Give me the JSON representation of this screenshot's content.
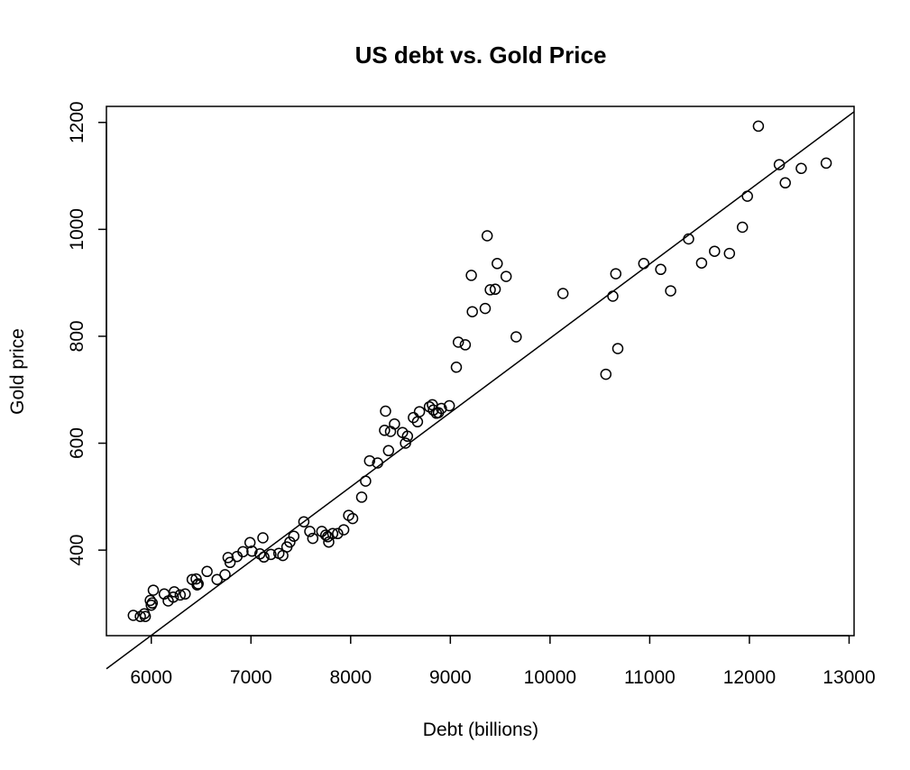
{
  "chart_data": {
    "type": "scatter",
    "title": "US debt vs. Gold Price",
    "xlabel": "Debt (billions)",
    "ylabel": "Gold price",
    "xlim": [
      5550,
      13050
    ],
    "ylim": [
      240,
      1230
    ],
    "x_ticks": [
      6000,
      7000,
      8000,
      9000,
      10000,
      11000,
      12000,
      13000
    ],
    "y_ticks": [
      400,
      600,
      800,
      1000,
      1200
    ],
    "x_tick_labels": [
      "6000",
      "7000",
      "8000",
      "9000",
      "10000",
      "11000",
      "12000",
      "13000"
    ],
    "y_tick_labels": [
      "400",
      "600",
      "800",
      "1000",
      "1200"
    ],
    "grid": false,
    "legend": "none",
    "points": [
      {
        "x": 5820,
        "y": 278
      },
      {
        "x": 5890,
        "y": 276
      },
      {
        "x": 5930,
        "y": 281
      },
      {
        "x": 5940,
        "y": 276
      },
      {
        "x": 5990,
        "y": 306
      },
      {
        "x": 6000,
        "y": 297
      },
      {
        "x": 6010,
        "y": 301
      },
      {
        "x": 6020,
        "y": 325
      },
      {
        "x": 6130,
        "y": 318
      },
      {
        "x": 6170,
        "y": 305
      },
      {
        "x": 6220,
        "y": 312
      },
      {
        "x": 6230,
        "y": 322
      },
      {
        "x": 6290,
        "y": 316
      },
      {
        "x": 6340,
        "y": 318
      },
      {
        "x": 6410,
        "y": 345
      },
      {
        "x": 6450,
        "y": 346
      },
      {
        "x": 6460,
        "y": 335
      },
      {
        "x": 6470,
        "y": 337
      },
      {
        "x": 6560,
        "y": 360
      },
      {
        "x": 6660,
        "y": 345
      },
      {
        "x": 6740,
        "y": 354
      },
      {
        "x": 6770,
        "y": 386
      },
      {
        "x": 6790,
        "y": 377
      },
      {
        "x": 6860,
        "y": 388
      },
      {
        "x": 6920,
        "y": 397
      },
      {
        "x": 6990,
        "y": 414
      },
      {
        "x": 7010,
        "y": 398
      },
      {
        "x": 7090,
        "y": 393
      },
      {
        "x": 7120,
        "y": 423
      },
      {
        "x": 7130,
        "y": 387
      },
      {
        "x": 7200,
        "y": 392
      },
      {
        "x": 7280,
        "y": 394
      },
      {
        "x": 7320,
        "y": 390
      },
      {
        "x": 7360,
        "y": 406
      },
      {
        "x": 7390,
        "y": 415
      },
      {
        "x": 7430,
        "y": 426
      },
      {
        "x": 7530,
        "y": 453
      },
      {
        "x": 7590,
        "y": 435
      },
      {
        "x": 7620,
        "y": 422
      },
      {
        "x": 7710,
        "y": 435
      },
      {
        "x": 7750,
        "y": 428
      },
      {
        "x": 7770,
        "y": 425
      },
      {
        "x": 7780,
        "y": 415
      },
      {
        "x": 7820,
        "y": 431
      },
      {
        "x": 7870,
        "y": 431
      },
      {
        "x": 7930,
        "y": 438
      },
      {
        "x": 7980,
        "y": 465
      },
      {
        "x": 8020,
        "y": 459
      },
      {
        "x": 8110,
        "y": 499
      },
      {
        "x": 8150,
        "y": 529
      },
      {
        "x": 8190,
        "y": 567
      },
      {
        "x": 8270,
        "y": 563
      },
      {
        "x": 8340,
        "y": 624
      },
      {
        "x": 8350,
        "y": 660
      },
      {
        "x": 8380,
        "y": 586
      },
      {
        "x": 8400,
        "y": 622
      },
      {
        "x": 8440,
        "y": 636
      },
      {
        "x": 8520,
        "y": 620
      },
      {
        "x": 8550,
        "y": 600
      },
      {
        "x": 8570,
        "y": 613
      },
      {
        "x": 8630,
        "y": 648
      },
      {
        "x": 8670,
        "y": 640
      },
      {
        "x": 8690,
        "y": 659
      },
      {
        "x": 8790,
        "y": 668
      },
      {
        "x": 8820,
        "y": 672
      },
      {
        "x": 8830,
        "y": 662
      },
      {
        "x": 8860,
        "y": 656
      },
      {
        "x": 8880,
        "y": 657
      },
      {
        "x": 8910,
        "y": 665
      },
      {
        "x": 8990,
        "y": 670
      },
      {
        "x": 9060,
        "y": 742
      },
      {
        "x": 9080,
        "y": 789
      },
      {
        "x": 9150,
        "y": 784
      },
      {
        "x": 9210,
        "y": 914
      },
      {
        "x": 9220,
        "y": 846
      },
      {
        "x": 9350,
        "y": 852
      },
      {
        "x": 9370,
        "y": 988
      },
      {
        "x": 9400,
        "y": 887
      },
      {
        "x": 9450,
        "y": 888
      },
      {
        "x": 9470,
        "y": 936
      },
      {
        "x": 9560,
        "y": 912
      },
      {
        "x": 9660,
        "y": 799
      },
      {
        "x": 10130,
        "y": 880
      },
      {
        "x": 10560,
        "y": 729
      },
      {
        "x": 10630,
        "y": 875
      },
      {
        "x": 10660,
        "y": 917
      },
      {
        "x": 10680,
        "y": 777
      },
      {
        "x": 10940,
        "y": 936
      },
      {
        "x": 11110,
        "y": 925
      },
      {
        "x": 11210,
        "y": 885
      },
      {
        "x": 11390,
        "y": 982
      },
      {
        "x": 11520,
        "y": 937
      },
      {
        "x": 11650,
        "y": 959
      },
      {
        "x": 11800,
        "y": 955
      },
      {
        "x": 11930,
        "y": 1004
      },
      {
        "x": 11980,
        "y": 1062
      },
      {
        "x": 12090,
        "y": 1193
      },
      {
        "x": 12300,
        "y": 1121
      },
      {
        "x": 12360,
        "y": 1087
      },
      {
        "x": 12520,
        "y": 1114
      },
      {
        "x": 12770,
        "y": 1124
      }
    ],
    "fit_line": {
      "x": [
        5550,
        13050
      ],
      "y": [
        178,
        1220
      ]
    }
  }
}
